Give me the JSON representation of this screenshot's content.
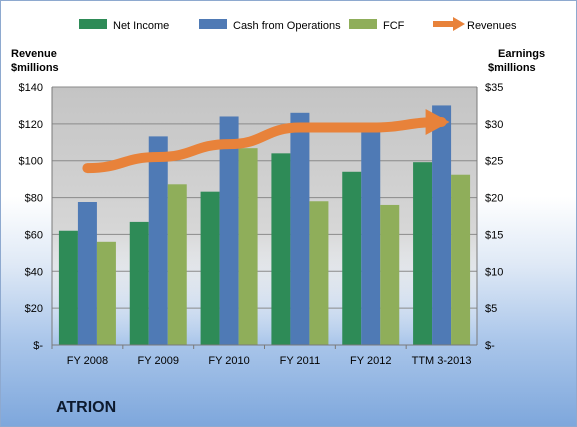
{
  "company": "ATRION",
  "chart_data": {
    "type": "bar",
    "categories": [
      "FY 2008",
      "FY 2009",
      "FY 2010",
      "FY 2011",
      "FY 2012",
      "TTM 3-2013"
    ],
    "left_axis": {
      "label_line1": "Revenue",
      "label_line2": "$millions",
      "ylim": [
        0,
        140
      ],
      "ticks": [
        0,
        20,
        40,
        60,
        80,
        100,
        120,
        140
      ],
      "tick_labels": [
        "$-",
        "$20",
        "$40",
        "$60",
        "$80",
        "$100",
        "$120",
        "$140"
      ]
    },
    "right_axis": {
      "label_line1": "Earnings",
      "label_line2": "$millions",
      "ylim": [
        0,
        35
      ],
      "ticks": [
        0,
        5,
        10,
        15,
        20,
        25,
        30,
        35
      ],
      "tick_labels": [
        "$-",
        "$5",
        "$10",
        "$15",
        "$20",
        "$25",
        "$30",
        "$35"
      ]
    },
    "series": [
      {
        "name": "Net Income",
        "type": "bar",
        "axis": "right",
        "color": "#2e8b57",
        "values": [
          15.5,
          16.7,
          20.8,
          26.0,
          23.5,
          24.8
        ]
      },
      {
        "name": "Cash from Operations",
        "type": "bar",
        "axis": "right",
        "color": "#4f7ab5",
        "values": [
          19.4,
          28.3,
          31.0,
          31.5,
          29.5,
          32.5
        ]
      },
      {
        "name": "FCF",
        "type": "bar",
        "axis": "right",
        "color": "#8fae5a",
        "values": [
          14.0,
          21.8,
          26.7,
          19.5,
          19.0,
          23.1
        ]
      },
      {
        "name": "Revenues",
        "type": "line",
        "axis": "left",
        "color": "#e8823a",
        "values": [
          96,
          102,
          109,
          118,
          118,
          121
        ]
      }
    ],
    "grid": true,
    "legend": "top"
  }
}
